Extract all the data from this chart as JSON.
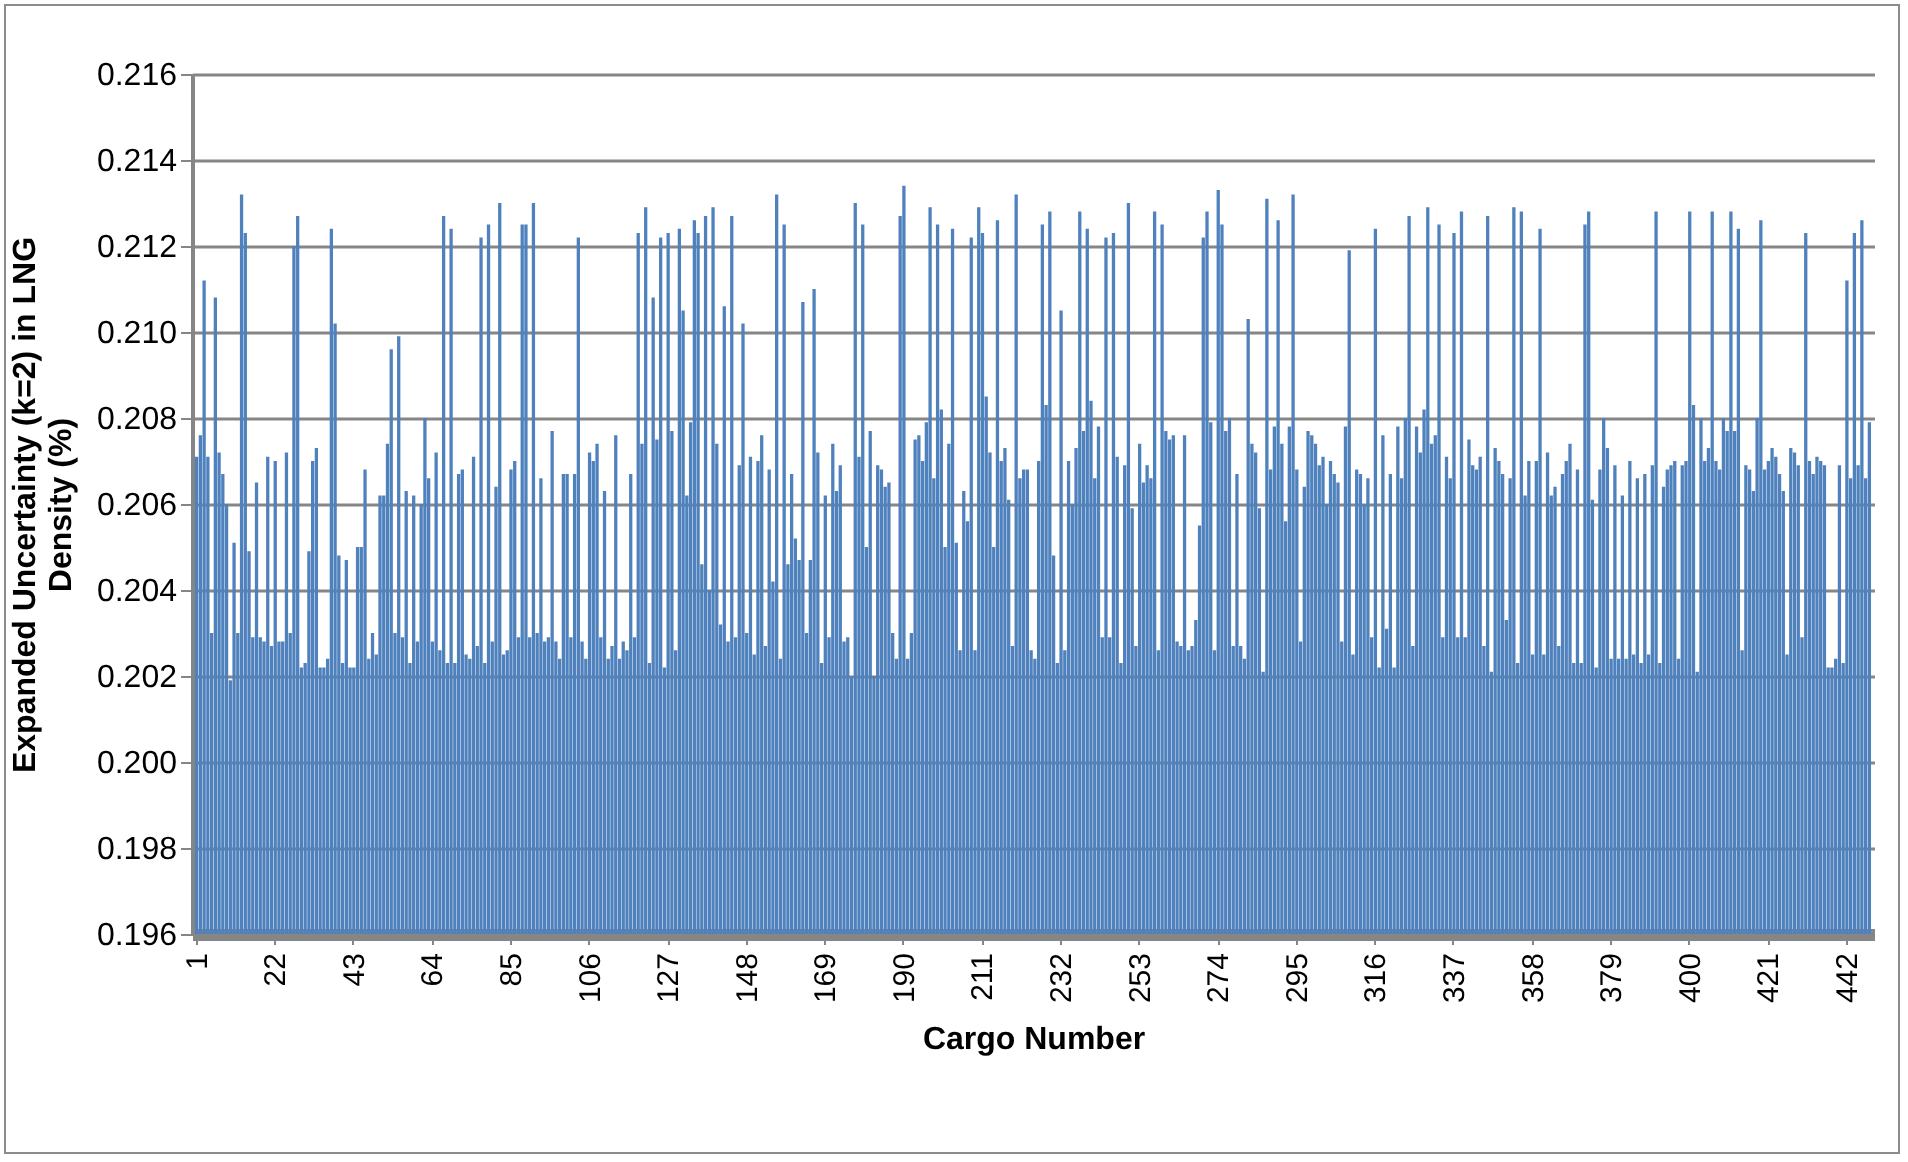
{
  "chart_data": {
    "type": "bar",
    "xlabel": "Cargo Number",
    "ylabel": "Expanded Uncertainty (k=2) in LNG Density (%)",
    "color": "#4f81bd",
    "categories": [
      "1",
      null,
      null,
      null,
      null,
      null,
      null,
      null,
      null,
      null,
      null,
      null,
      null,
      null,
      null,
      null,
      null,
      null,
      null,
      null,
      null,
      "22",
      null,
      null,
      null,
      null,
      null,
      null,
      null,
      null,
      null,
      null,
      null,
      null,
      null,
      null,
      null,
      null,
      null,
      null,
      null,
      null,
      "43",
      null,
      null,
      null,
      null,
      null,
      null,
      null,
      null,
      null,
      null,
      null,
      null,
      null,
      null,
      null,
      null,
      null,
      null,
      null,
      null,
      "64",
      null,
      null,
      null,
      null,
      null,
      null,
      null,
      null,
      null,
      null,
      null,
      null,
      null,
      null,
      null,
      null,
      null,
      null,
      null,
      null,
      "85",
      null,
      null,
      null,
      null,
      null,
      null,
      null,
      null,
      null,
      null,
      null,
      null,
      null,
      null,
      null,
      null,
      null,
      null,
      null,
      null,
      "106",
      null,
      null,
      null,
      null,
      null,
      null,
      null,
      null,
      null,
      null,
      null,
      null,
      null,
      null,
      null,
      null,
      null,
      null,
      null,
      null,
      "127",
      null,
      null,
      null,
      null,
      null,
      null,
      null,
      null,
      null,
      null,
      null,
      null,
      null,
      null,
      null,
      null,
      null,
      null,
      null,
      null,
      "148",
      null,
      null,
      null,
      null,
      null,
      null,
      null,
      null,
      null,
      null,
      null,
      null,
      null,
      null,
      null,
      null,
      null,
      null,
      null,
      null,
      "169",
      null,
      null,
      null,
      null,
      null,
      null,
      null,
      null,
      null,
      null,
      null,
      null,
      null,
      null,
      null,
      null,
      null,
      null,
      null,
      null,
      "190",
      null,
      null,
      null,
      null,
      null,
      null,
      null,
      null,
      null,
      null,
      null,
      null,
      null,
      null,
      null,
      null,
      null,
      null,
      null,
      null,
      "211",
      null,
      null,
      null,
      null,
      null,
      null,
      null,
      null,
      null,
      null,
      null,
      null,
      null,
      null,
      null,
      null,
      null,
      null,
      null,
      null,
      "232",
      null,
      null,
      null,
      null,
      null,
      null,
      null,
      null,
      null,
      null,
      null,
      null,
      null,
      null,
      null,
      null,
      null,
      null,
      null,
      null,
      "253",
      null,
      null,
      null,
      null,
      null,
      null,
      null,
      null,
      null,
      null,
      null,
      null,
      null,
      null,
      null,
      null,
      null,
      null,
      null,
      null,
      "274",
      null,
      null,
      null,
      null,
      null,
      null,
      null,
      null,
      null,
      null,
      null,
      null,
      null,
      null,
      null,
      null,
      null,
      null,
      null,
      null,
      "295",
      null,
      null,
      null,
      null,
      null,
      null,
      null,
      null,
      null,
      null,
      null,
      null,
      null,
      null,
      null,
      null,
      null,
      null,
      null,
      null,
      "316",
      null,
      null,
      null,
      null,
      null,
      null,
      null,
      null,
      null,
      null,
      null,
      null,
      null,
      null,
      null,
      null,
      null,
      null,
      null,
      null,
      "337",
      null,
      null,
      null,
      null,
      null,
      null,
      null,
      null,
      null,
      null,
      null,
      null,
      null,
      null,
      null,
      null,
      null,
      null,
      null,
      null,
      "358",
      null,
      null,
      null,
      null,
      null,
      null,
      null,
      null,
      null,
      null,
      null,
      null,
      null,
      null,
      null,
      null,
      null,
      null,
      null,
      null,
      "379",
      null,
      null,
      null,
      null,
      null,
      null,
      null,
      null,
      null,
      null,
      null,
      null,
      null,
      null,
      null,
      null,
      null,
      null,
      null,
      null,
      "400",
      null,
      null,
      null,
      null,
      null,
      null,
      null,
      null,
      null,
      null,
      null,
      null,
      null,
      null,
      null,
      null,
      null,
      null,
      null,
      null,
      "421",
      null,
      null,
      null,
      null,
      null,
      null,
      null,
      null,
      null,
      null,
      null,
      null,
      null,
      null,
      null,
      null,
      null,
      null,
      null,
      null,
      "442",
      null,
      null,
      null,
      null,
      null,
      null
    ],
    "values": [
      0.2071,
      0.2076,
      0.2112,
      0.2071,
      0.203,
      0.2108,
      0.2072,
      0.2067,
      0.206,
      0.2019,
      0.2051,
      0.203,
      0.2132,
      0.2123,
      0.2049,
      0.2029,
      0.2065,
      0.2029,
      0.2028,
      0.2071,
      0.2027,
      0.207,
      0.2028,
      0.2028,
      0.2072,
      0.203,
      0.212,
      0.2127,
      0.2022,
      0.2023,
      0.2049,
      0.207,
      0.2073,
      0.2022,
      0.2022,
      0.2024,
      0.2124,
      0.2102,
      0.2048,
      0.2023,
      0.2047,
      0.2022,
      0.2022,
      0.205,
      0.205,
      0.2068,
      0.2024,
      0.203,
      0.2025,
      0.2062,
      0.2062,
      0.2074,
      0.2096,
      0.203,
      0.2099,
      0.2029,
      0.2063,
      0.2023,
      0.2062,
      0.2028,
      0.206,
      0.208,
      0.2066,
      0.2028,
      0.2072,
      0.2026,
      0.2127,
      0.2023,
      0.2124,
      0.2023,
      0.2067,
      0.2068,
      0.2025,
      0.2024,
      0.2071,
      0.2027,
      0.2122,
      0.2023,
      0.2125,
      0.2028,
      0.2064,
      0.213,
      0.2025,
      0.2026,
      0.2068,
      0.207,
      0.2029,
      0.2125,
      0.2125,
      0.2029,
      0.213,
      0.203,
      0.2066,
      0.2028,
      0.2029,
      0.2077,
      0.2028,
      0.2024,
      0.2067,
      0.2067,
      0.2029,
      0.2067,
      0.2122,
      0.2028,
      0.2024,
      0.2072,
      0.207,
      0.2074,
      0.2029,
      0.2063,
      0.2024,
      0.2027,
      0.2076,
      0.2024,
      0.2028,
      0.2026,
      0.2067,
      0.2029,
      0.2123,
      0.2074,
      0.2129,
      0.2023,
      0.2108,
      0.2075,
      0.2122,
      0.2022,
      0.2123,
      0.2077,
      0.2026,
      0.2124,
      0.2105,
      0.2062,
      0.2079,
      0.2126,
      0.2123,
      0.2046,
      0.2127,
      0.204,
      0.2129,
      0.2074,
      0.2032,
      0.2106,
      0.2028,
      0.2127,
      0.2029,
      0.2069,
      0.2102,
      0.203,
      0.2071,
      0.2025,
      0.207,
      0.2076,
      0.2027,
      0.2068,
      0.2042,
      0.2132,
      0.2024,
      0.2125,
      0.2046,
      0.2067,
      0.2052,
      0.2047,
      0.2107,
      0.203,
      0.2047,
      0.211,
      0.2072,
      0.2023,
      0.2062,
      0.2029,
      0.2074,
      0.2063,
      0.2069,
      0.2028,
      0.2029,
      0.202,
      0.213,
      0.2071,
      0.2125,
      0.205,
      0.2077,
      0.202,
      0.2069,
      0.2068,
      0.2064,
      0.2065,
      0.203,
      0.2024,
      0.2127,
      0.2134,
      0.2024,
      0.203,
      0.2075,
      0.2076,
      0.207,
      0.2079,
      0.2129,
      0.2066,
      0.2125,
      0.2082,
      0.205,
      0.2074,
      0.2124,
      0.2051,
      0.2026,
      0.2063,
      0.2056,
      0.2122,
      0.2026,
      0.2129,
      0.2123,
      0.2085,
      0.2072,
      0.205,
      0.2126,
      0.207,
      0.2073,
      0.2061,
      0.2027,
      0.2132,
      0.2066,
      0.2068,
      0.2068,
      0.2026,
      0.2024,
      0.207,
      0.2125,
      0.2083,
      0.2128,
      0.2048,
      0.2023,
      0.2105,
      0.2026,
      0.207,
      0.206,
      0.2073,
      0.2128,
      0.2077,
      0.2124,
      0.2084,
      0.2066,
      0.2078,
      0.2029,
      0.2122,
      0.2029,
      0.2123,
      0.2071,
      0.2023,
      0.2069,
      0.213,
      0.2059,
      0.2027,
      0.2074,
      0.2065,
      0.2069,
      0.2066,
      0.2128,
      0.2026,
      0.2125,
      0.2077,
      0.2075,
      0.2076,
      0.2028,
      0.2027,
      0.2076,
      0.2026,
      0.2027,
      0.2033,
      0.2055,
      0.2122,
      0.2128,
      0.2079,
      0.2026,
      0.2133,
      0.2125,
      0.2077,
      0.208,
      0.2027,
      0.2067,
      0.2027,
      0.2024,
      0.2103,
      0.2074,
      0.2072,
      0.2059,
      0.2021,
      0.2131,
      0.2068,
      0.2078,
      0.2126,
      0.2074,
      0.2056,
      0.2078,
      0.2132,
      0.2068,
      0.2028,
      0.2064,
      0.2077,
      0.2076,
      0.2074,
      0.2069,
      0.2071,
      0.206,
      0.207,
      0.2067,
      0.2065,
      0.2028,
      0.2078,
      0.2119,
      0.2025,
      0.2068,
      0.2067,
      0.206,
      0.2066,
      0.2029,
      0.2124,
      0.2022,
      0.2076,
      0.2031,
      0.2067,
      0.2022,
      0.2078,
      0.2066,
      0.208,
      0.2127,
      0.2027,
      0.2078,
      0.2072,
      0.2082,
      0.2129,
      0.2074,
      0.2076,
      0.2125,
      0.2029,
      0.2071,
      0.2066,
      0.2123,
      0.2029,
      0.2128,
      0.2029,
      0.2075,
      0.2069,
      0.2068,
      0.2071,
      0.2027,
      0.2127,
      0.2021,
      0.2073,
      0.207,
      0.2067,
      0.2033,
      0.2066,
      0.2129,
      0.2023,
      0.2128,
      0.2062,
      0.207,
      0.2025,
      0.207,
      0.2124,
      0.2025,
      0.2072,
      0.2062,
      0.2064,
      0.2027,
      0.2067,
      0.207,
      0.2074,
      0.2023,
      0.2068,
      0.2023,
      0.2125,
      0.2128,
      0.2061,
      0.2022,
      0.2068,
      0.208,
      0.2073,
      0.2024,
      0.2069,
      0.2024,
      0.2062,
      0.2024,
      0.207,
      0.2025,
      0.2066,
      0.2023,
      0.2067,
      0.2025,
      0.2069,
      0.2128,
      0.2023,
      0.2064,
      0.2068,
      0.2069,
      0.207,
      0.2024,
      0.2069,
      0.207,
      0.2128,
      0.2083,
      0.2021,
      0.208,
      0.207,
      0.2073,
      0.2128,
      0.207,
      0.2068,
      0.208,
      0.2077,
      0.2128,
      0.2077,
      0.2124,
      0.2026,
      0.2069,
      0.2068,
      0.2063,
      0.208,
      0.2126,
      0.2068,
      0.207,
      0.2073,
      0.2071,
      0.2067,
      0.2063,
      0.2025,
      0.2073,
      0.2072,
      0.2069,
      0.2029,
      0.2123,
      0.207,
      0.2067,
      0.2071,
      0.207,
      0.2069,
      0.2022,
      0.2022,
      0.2024,
      0.2069,
      0.2023,
      0.2112,
      0.2066,
      0.2123,
      0.2069,
      0.2126,
      0.2066,
      0.2079
    ],
    "ylim": [
      0.196,
      0.216
    ],
    "yticks": [
      {
        "value": 0.196,
        "label": "0.196"
      },
      {
        "value": 0.198,
        "label": "0.198"
      },
      {
        "value": 0.2,
        "label": "0.200"
      },
      {
        "value": 0.202,
        "label": "0.202"
      },
      {
        "value": 0.204,
        "label": "0.204"
      },
      {
        "value": 0.206,
        "label": "0.206"
      },
      {
        "value": 0.208,
        "label": "0.208"
      },
      {
        "value": 0.21,
        "label": "0.210"
      },
      {
        "value": 0.212,
        "label": "0.212"
      },
      {
        "value": 0.214,
        "label": "0.214"
      },
      {
        "value": 0.216,
        "label": "0.216"
      }
    ],
    "grid": "y"
  }
}
